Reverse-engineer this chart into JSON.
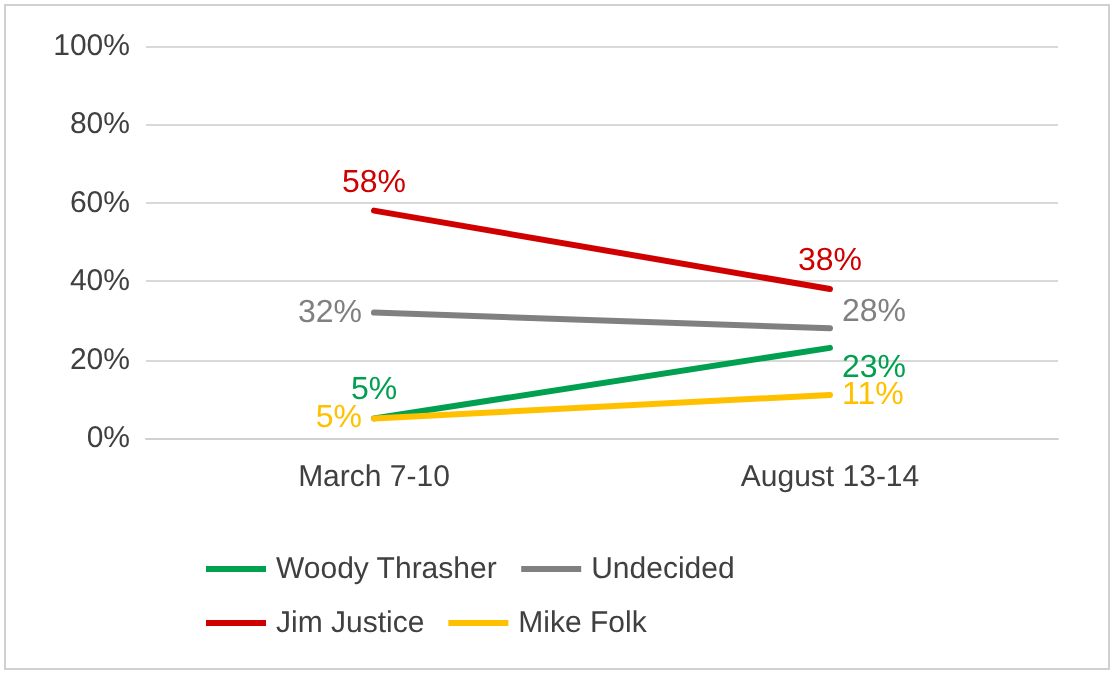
{
  "chart_data": {
    "type": "line",
    "categories": [
      "March 7-10",
      "August 13-14"
    ],
    "series": [
      {
        "name": "Woody Thrasher",
        "color": "#00a050",
        "values": [
          5,
          23
        ],
        "value_labels": [
          "5%",
          "23%"
        ]
      },
      {
        "name": "Undecided",
        "color": "#808080",
        "values": [
          32,
          28
        ],
        "value_labels": [
          "32%",
          "28%"
        ]
      },
      {
        "name": "Jim Justice",
        "color": "#d00000",
        "values": [
          58,
          38
        ],
        "value_labels": [
          "58%",
          "38%"
        ]
      },
      {
        "name": "Mike Folk",
        "color": "#ffc000",
        "values": [
          5,
          11
        ],
        "value_labels": [
          "5%",
          "11%"
        ]
      }
    ],
    "ylim": [
      0,
      100
    ],
    "yticks": [
      {
        "value": 0,
        "label": "0%"
      },
      {
        "value": 20,
        "label": "20%"
      },
      {
        "value": 40,
        "label": "40%"
      },
      {
        "value": 60,
        "label": "60%"
      },
      {
        "value": 80,
        "label": "80%"
      },
      {
        "value": 100,
        "label": "100%"
      }
    ],
    "grid": "y",
    "legend": "bottom",
    "marker": "none",
    "line_style": "solid"
  }
}
